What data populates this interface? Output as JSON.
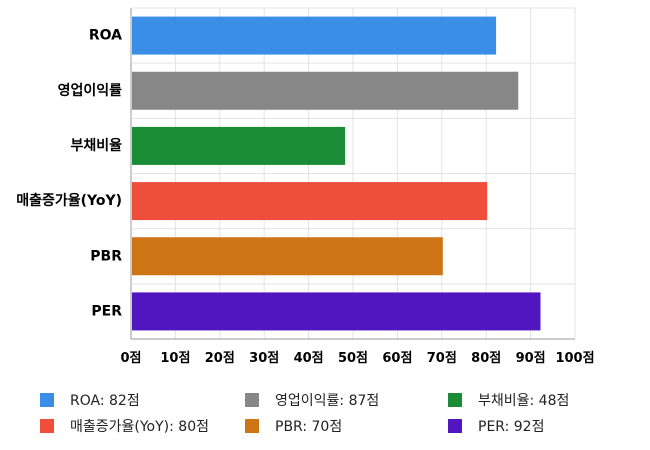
{
  "chart_data": {
    "type": "bar",
    "orientation": "horizontal",
    "categories": [
      "ROA",
      "영업이익률",
      "부채비율",
      "매출증가율(YoY)",
      "PBR",
      "PER"
    ],
    "values": [
      82,
      87,
      48,
      80,
      70,
      92
    ],
    "colors": [
      "#3a8ee6",
      "#878787",
      "#1a8c36",
      "#ee4e3a",
      "#cc7416",
      "#5116c0"
    ],
    "xlim": [
      0,
      100
    ],
    "xticks": [
      0,
      10,
      20,
      30,
      40,
      50,
      60,
      70,
      80,
      90,
      100
    ],
    "tick_suffix": "점",
    "grid": true,
    "legend_position": "bottom",
    "legend": [
      "ROA: 82점",
      "영업이익률: 87점",
      "부채비율: 48점",
      "매출증가율(YoY): 80점",
      "PBR: 70점",
      "PER: 92점"
    ]
  }
}
